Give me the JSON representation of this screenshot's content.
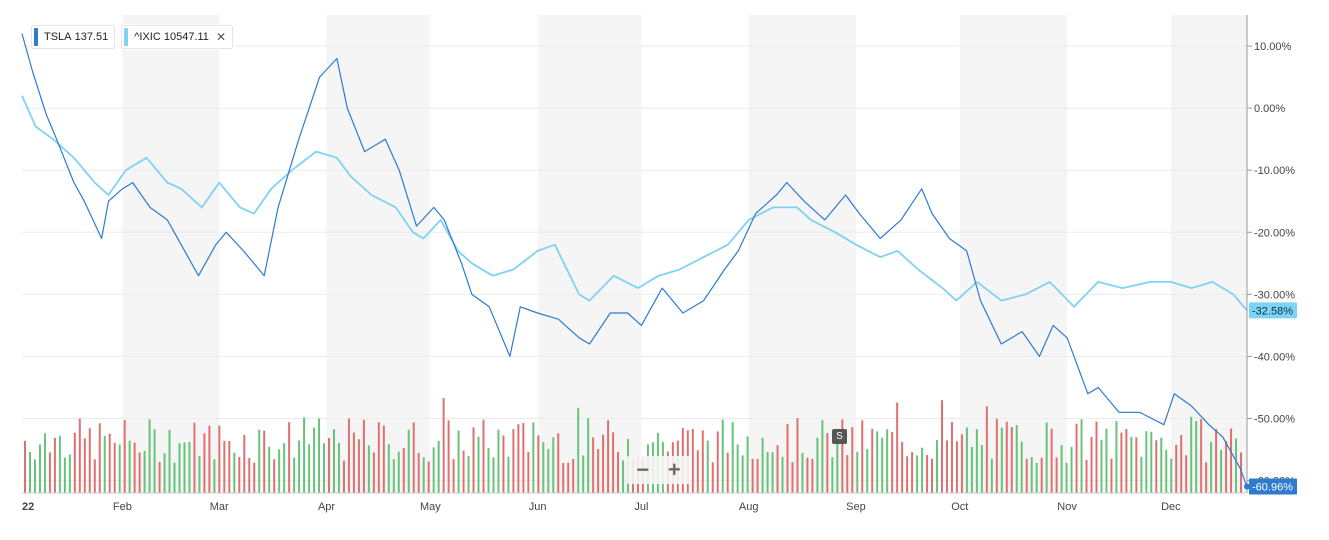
{
  "legend": [
    {
      "symbol": "TSLA",
      "price": "137.51",
      "color": "#2e7bcf"
    },
    {
      "symbol": "^IXIC",
      "price": "10547.11",
      "color": "#7fd3f2",
      "close": "✕"
    }
  ],
  "zoom": {
    "minus": "−",
    "plus": "+"
  },
  "split_marker": "S",
  "chart_data": {
    "type": "line",
    "x_range": [
      "2022-01-03",
      "2022-12-23"
    ],
    "x_ticks": [
      {
        "label": "22",
        "date": "2022-01-01"
      },
      {
        "label": "Feb",
        "date": "2022-02-01"
      },
      {
        "label": "Mar",
        "date": "2022-03-01"
      },
      {
        "label": "Apr",
        "date": "2022-04-01"
      },
      {
        "label": "May",
        "date": "2022-05-01"
      },
      {
        "label": "Jun",
        "date": "2022-06-01"
      },
      {
        "label": "Jul",
        "date": "2022-07-01"
      },
      {
        "label": "Aug",
        "date": "2022-08-01"
      },
      {
        "label": "Sep",
        "date": "2022-09-01"
      },
      {
        "label": "Oct",
        "date": "2022-10-01"
      },
      {
        "label": "Nov",
        "date": "2022-11-01"
      },
      {
        "label": "Dec",
        "date": "2022-12-01"
      }
    ],
    "y_range": [
      -62,
      15
    ],
    "y_ticks": [
      {
        "value": 10,
        "label": "10.00%"
      },
      {
        "value": 0,
        "label": "0.00%"
      },
      {
        "value": -10,
        "label": "-10.00%"
      },
      {
        "value": -20,
        "label": "-20.00%"
      },
      {
        "value": -30,
        "label": "-30.00%"
      },
      {
        "value": -40,
        "label": "-40.00%"
      },
      {
        "value": -50,
        "label": "-50.00%"
      },
      {
        "value": -60,
        "label": "-60.00%"
      }
    ],
    "current_labels": [
      {
        "series": "^IXIC",
        "value": -32.58,
        "label": "-32.58%",
        "color": "#7fd3f2"
      },
      {
        "series": "TSLA",
        "value": -60.96,
        "label": "-60.96%",
        "color": "#2e7bcf"
      }
    ],
    "series": [
      {
        "name": "TSLA",
        "color": "#2e7bcf",
        "dates": [
          "2022-01-03",
          "2022-01-06",
          "2022-01-10",
          "2022-01-13",
          "2022-01-18",
          "2022-01-21",
          "2022-01-26",
          "2022-01-28",
          "2022-02-01",
          "2022-02-04",
          "2022-02-09",
          "2022-02-14",
          "2022-02-18",
          "2022-02-23",
          "2022-02-28",
          "2022-03-03",
          "2022-03-08",
          "2022-03-14",
          "2022-03-18",
          "2022-03-24",
          "2022-03-30",
          "2022-04-04",
          "2022-04-07",
          "2022-04-12",
          "2022-04-18",
          "2022-04-22",
          "2022-04-27",
          "2022-05-02",
          "2022-05-05",
          "2022-05-10",
          "2022-05-13",
          "2022-05-18",
          "2022-05-24",
          "2022-05-27",
          "2022-06-01",
          "2022-06-07",
          "2022-06-13",
          "2022-06-16",
          "2022-06-22",
          "2022-06-27",
          "2022-07-01",
          "2022-07-07",
          "2022-07-13",
          "2022-07-19",
          "2022-07-25",
          "2022-07-29",
          "2022-08-03",
          "2022-08-09",
          "2022-08-12",
          "2022-08-17",
          "2022-08-23",
          "2022-08-29",
          "2022-09-02",
          "2022-09-08",
          "2022-09-14",
          "2022-09-20",
          "2022-09-23",
          "2022-09-28",
          "2022-10-03",
          "2022-10-07",
          "2022-10-13",
          "2022-10-19",
          "2022-10-24",
          "2022-10-28",
          "2022-11-01",
          "2022-11-07",
          "2022-11-10",
          "2022-11-16",
          "2022-11-22",
          "2022-11-29",
          "2022-12-02",
          "2022-12-07",
          "2022-12-12",
          "2022-12-16",
          "2022-12-21",
          "2022-12-23"
        ],
        "values": [
          12,
          6,
          -1,
          -5,
          -12,
          -15,
          -21,
          -15,
          -13,
          -12,
          -16,
          -18,
          -22,
          -27,
          -22,
          -20,
          -23,
          -27,
          -16,
          -5,
          5,
          8,
          0,
          -7,
          -5,
          -10,
          -19,
          -16,
          -18,
          -25,
          -30,
          -32,
          -40,
          -32,
          -33,
          -34,
          -37,
          -38,
          -33,
          -33,
          -35,
          -29,
          -33,
          -31,
          -26,
          -23,
          -17,
          -14,
          -12,
          -15,
          -18,
          -14,
          -17,
          -21,
          -18,
          -13,
          -17,
          -21,
          -23,
          -31,
          -38,
          -36,
          -40,
          -35,
          -37,
          -46,
          -45,
          -49,
          -49,
          -51,
          -46,
          -48,
          -51,
          -53,
          -58,
          -61
        ]
      },
      {
        "name": "^IXIC",
        "color": "#7fd3f2",
        "dates": [
          "2022-01-03",
          "2022-01-07",
          "2022-01-12",
          "2022-01-18",
          "2022-01-24",
          "2022-01-28",
          "2022-02-02",
          "2022-02-08",
          "2022-02-14",
          "2022-02-18",
          "2022-02-24",
          "2022-03-01",
          "2022-03-07",
          "2022-03-11",
          "2022-03-16",
          "2022-03-22",
          "2022-03-29",
          "2022-04-04",
          "2022-04-08",
          "2022-04-14",
          "2022-04-21",
          "2022-04-26",
          "2022-04-29",
          "2022-05-04",
          "2022-05-09",
          "2022-05-13",
          "2022-05-19",
          "2022-05-25",
          "2022-06-01",
          "2022-06-06",
          "2022-06-13",
          "2022-06-16",
          "2022-06-23",
          "2022-06-30",
          "2022-07-06",
          "2022-07-12",
          "2022-07-19",
          "2022-07-26",
          "2022-08-01",
          "2022-08-08",
          "2022-08-15",
          "2022-08-19",
          "2022-08-26",
          "2022-09-01",
          "2022-09-08",
          "2022-09-13",
          "2022-09-19",
          "2022-09-26",
          "2022-09-30",
          "2022-10-06",
          "2022-10-13",
          "2022-10-20",
          "2022-10-27",
          "2022-11-03",
          "2022-11-10",
          "2022-11-17",
          "2022-11-25",
          "2022-12-01",
          "2022-12-07",
          "2022-12-13",
          "2022-12-19",
          "2022-12-23"
        ],
        "values": [
          2,
          -3,
          -5,
          -8,
          -12,
          -14,
          -10,
          -8,
          -12,
          -13,
          -16,
          -12,
          -16,
          -17,
          -13,
          -10,
          -7,
          -8,
          -11,
          -14,
          -16,
          -20,
          -21,
          -18,
          -23,
          -25,
          -27,
          -26,
          -23,
          -22,
          -30,
          -31,
          -27,
          -29,
          -27,
          -26,
          -24,
          -22,
          -18,
          -16,
          -16,
          -18,
          -20,
          -22,
          -24,
          -23,
          -26,
          -29,
          -31,
          -28,
          -31,
          -30,
          -28,
          -32,
          -28,
          -29,
          -28,
          -28,
          -29,
          -28,
          -30,
          -32.58
        ]
      }
    ]
  }
}
